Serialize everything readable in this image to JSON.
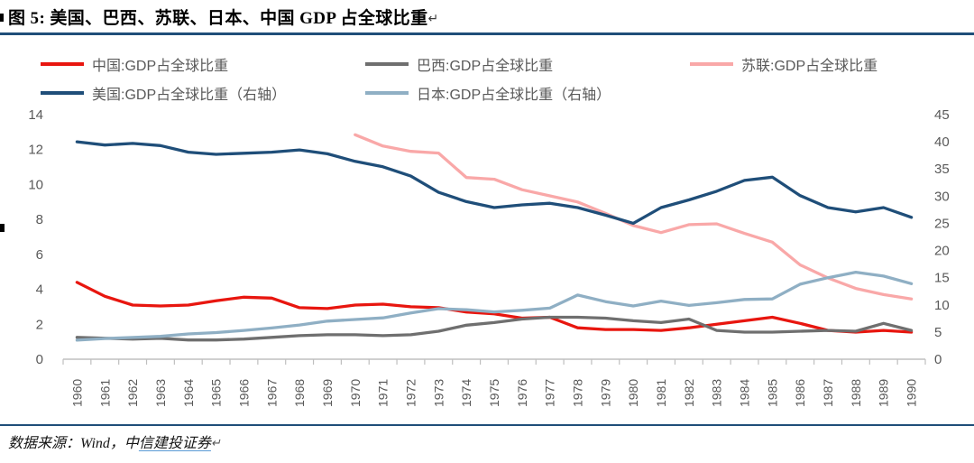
{
  "title": {
    "text": "图 5:  美国、巴西、苏联、日本、中国 GDP 占全球比重",
    "return_mark": "↵"
  },
  "footer": {
    "prefix": "数据来源：Wind，中",
    "link": "信建投证券",
    "return_mark": "↵"
  },
  "colors": {
    "china": "#e8160f",
    "brazil": "#6f6f6f",
    "ussr": "#f9a8a8",
    "usa": "#1f4e79",
    "japan": "#8fafc4",
    "rule": "#1f4e79",
    "axis_text": "#595959",
    "axis_line": "#bfbfbf"
  },
  "legend": {
    "items": [
      {
        "label": "中国:GDP占全球比重",
        "series": "china"
      },
      {
        "label": "巴西:GDP占全球比重",
        "series": "brazil"
      },
      {
        "label": "苏联:GDP占全球比重",
        "series": "ussr"
      },
      {
        "label": "美国:GDP占全球比重（右轴）",
        "series": "usa"
      },
      {
        "label": "日本:GDP占全球比重（右轴）",
        "series": "japan"
      }
    ]
  },
  "chart_data": {
    "type": "line",
    "title": "美国、巴西、苏联、日本、中国 GDP 占全球比重",
    "xlabel": "",
    "ylabel_left": "",
    "ylabel_right": "",
    "legend_position": "top",
    "grid": false,
    "x": [
      1960,
      1961,
      1962,
      1963,
      1964,
      1965,
      1966,
      1967,
      1968,
      1969,
      1970,
      1971,
      1972,
      1973,
      1974,
      1975,
      1976,
      1977,
      1978,
      1979,
      1980,
      1981,
      1982,
      1983,
      1984,
      1985,
      1986,
      1987,
      1988,
      1989,
      1990
    ],
    "left_axis": {
      "min": 0,
      "max": 14,
      "ticks": [
        0,
        2,
        4,
        6,
        8,
        10,
        12,
        14
      ]
    },
    "right_axis": {
      "min": 0,
      "max": 45,
      "ticks": [
        0,
        5,
        10,
        15,
        20,
        25,
        30,
        35,
        40,
        45
      ]
    },
    "series": [
      {
        "id": "china",
        "name": "中国:GDP占全球比重",
        "axis": "left",
        "color": "china",
        "values": [
          4.4,
          3.6,
          3.1,
          3.05,
          3.1,
          3.35,
          3.55,
          3.5,
          2.95,
          2.9,
          3.1,
          3.15,
          3.0,
          2.95,
          2.7,
          2.6,
          2.35,
          2.4,
          1.8,
          1.7,
          1.7,
          1.65,
          1.8,
          2.0,
          2.2,
          2.4,
          2.05,
          1.65,
          1.55,
          1.65,
          1.55
        ]
      },
      {
        "id": "brazil",
        "name": "巴西:GDP占全球比重",
        "axis": "left",
        "color": "brazil",
        "values": [
          1.25,
          1.2,
          1.15,
          1.2,
          1.1,
          1.1,
          1.15,
          1.25,
          1.35,
          1.4,
          1.4,
          1.35,
          1.4,
          1.6,
          1.95,
          2.1,
          2.3,
          2.4,
          2.4,
          2.35,
          2.2,
          2.1,
          2.3,
          1.65,
          1.55,
          1.55,
          1.6,
          1.65,
          1.6,
          2.05,
          1.65
        ]
      },
      {
        "id": "ussr",
        "name": "苏联:GDP占全球比重",
        "axis": "left",
        "color": "ussr",
        "values": [
          null,
          null,
          null,
          null,
          null,
          null,
          null,
          null,
          null,
          null,
          12.85,
          12.2,
          11.9,
          11.8,
          10.4,
          10.3,
          9.7,
          9.35,
          9.0,
          8.35,
          7.65,
          7.25,
          7.7,
          7.75,
          7.2,
          6.7,
          5.4,
          4.65,
          4.05,
          3.7,
          3.45
        ]
      },
      {
        "id": "usa",
        "name": "美国:GDP占全球比重（右轴）",
        "axis": "right",
        "color": "usa",
        "values": [
          40.0,
          39.4,
          39.7,
          39.3,
          38.1,
          37.7,
          37.9,
          38.1,
          38.5,
          37.8,
          36.4,
          35.4,
          33.7,
          30.7,
          29.0,
          27.9,
          28.4,
          28.7,
          27.9,
          26.5,
          25.0,
          27.9,
          29.3,
          30.9,
          32.9,
          33.5,
          30.1,
          27.9,
          27.1,
          27.9,
          26.1
        ]
      },
      {
        "id": "japan",
        "name": "日本:GDP占全球比重（右轴）",
        "axis": "right",
        "color": "japan",
        "values": [
          3.5,
          3.8,
          4.0,
          4.2,
          4.65,
          4.9,
          5.3,
          5.75,
          6.3,
          7.0,
          7.3,
          7.6,
          8.5,
          9.3,
          9.1,
          8.7,
          9.0,
          9.4,
          11.8,
          10.6,
          9.8,
          10.7,
          9.9,
          10.4,
          11.0,
          11.1,
          13.8,
          15.0,
          16.0,
          15.3,
          13.9
        ]
      }
    ]
  }
}
